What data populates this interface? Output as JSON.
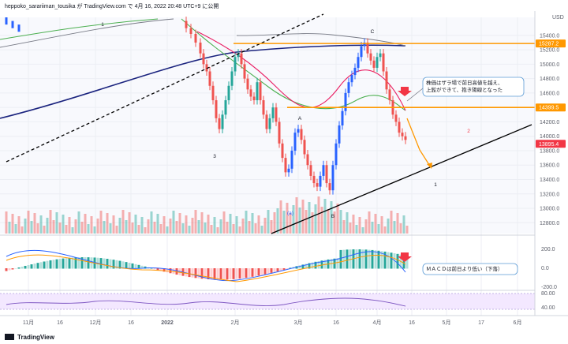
{
  "header": {
    "text": "heppoko_sarariiman_tousika が TradingView.com で 4月 16, 2022 20:48 UTC+9 に公開",
    "currency": "USD"
  },
  "footer": {
    "brand_logo_text": "TradingView"
  },
  "chart_data": {
    "type": "candlestick",
    "price_axis": {
      "ylim": [
        12650,
        15650
      ],
      "ticks": [
        15400.0,
        15200.0,
        15000.0,
        14800.0,
        14600.0,
        14400.0,
        14200.0,
        14000.0,
        13800.0,
        13600.0,
        13400.0,
        13200.0,
        13000.0,
        12800.0
      ]
    },
    "price_labels": [
      {
        "value": 15287.2,
        "text": "15287.2",
        "color": "#ff9800"
      },
      {
        "value": 14399.5,
        "text": "14399.5",
        "color": "#ff9800"
      },
      {
        "value": 13895.4,
        "text": "13895.4",
        "color": "#f23645"
      }
    ],
    "time_axis": [
      "11月",
      "16",
      "12月",
      "16",
      "2022",
      "2月",
      "3月",
      "16",
      "4月",
      "16",
      "5月",
      "17",
      "6月"
    ],
    "annotations": [
      {
        "text": "1",
        "kind": "wave"
      },
      {
        "text": "3",
        "kind": "wave"
      },
      {
        "text": "A",
        "kind": "wave"
      },
      {
        "text": "(a)",
        "kind": "wave_blue"
      },
      {
        "text": "B",
        "kind": "wave"
      },
      {
        "text": "C",
        "kind": "wave"
      },
      {
        "text": "2",
        "kind": "wave_red"
      },
      {
        "text": "1",
        "kind": "wave"
      }
    ],
    "notes": [
      {
        "lines": [
          "株価はザラ場で前日高値を越え、",
          "上髭ができて、抱き陽線となった"
        ]
      },
      {
        "lines": [
          "ＭＡＣＤは前日より低い（下落）"
        ]
      }
    ],
    "macd_axis": {
      "ticks": [
        "200.0",
        "0.0",
        "-200.0"
      ]
    },
    "rsi_axis": {
      "ticks": [
        "80.00",
        "40.00"
      ]
    },
    "colors": {
      "up": "#26a69a",
      "down": "#ef5350",
      "blue_candle": "#2962ff",
      "ma_blue": "#1a237e",
      "ma_red": "#e91e63",
      "ma_green": "#4caf50",
      "ma_gray": "#787b86",
      "orange": "#ff9800",
      "trend_black": "#000000"
    }
  }
}
